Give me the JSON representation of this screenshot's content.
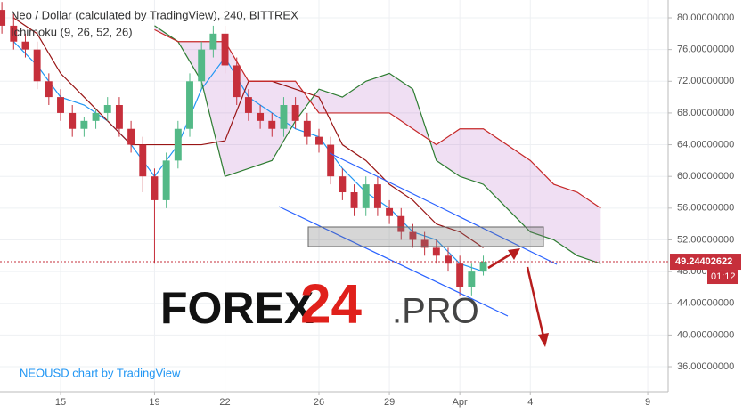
{
  "chart_data": {
    "type": "candlestick",
    "title": "Neo / Dollar (calculated by TradingView), 240, BITTREX",
    "subtitle": "Ichimoku (9, 26, 52, 26)",
    "x": [
      -2.5,
      -2,
      -1.5,
      -1,
      -0.5,
      0,
      0.5,
      1,
      1.5,
      2,
      2.5,
      3,
      3.5,
      4,
      4.5,
      5,
      5.5,
      6,
      6.5,
      7,
      7.5,
      8,
      8.5,
      9,
      9.5,
      10,
      10.5,
      11,
      11.5,
      12,
      12.5,
      13,
      13.5,
      14,
      14.5,
      15,
      15.5,
      16,
      16.5,
      17,
      17.5,
      18
    ],
    "open": [
      81,
      79,
      77,
      76,
      72,
      70,
      68,
      66,
      67,
      68,
      69,
      66,
      64,
      60,
      57,
      62,
      66,
      72,
      76,
      78,
      74,
      70,
      68,
      67,
      66,
      69,
      67,
      65,
      64,
      60,
      58,
      56,
      59,
      56,
      55,
      53,
      52,
      51,
      50,
      49,
      46,
      48
    ],
    "high": [
      82,
      80.5,
      78,
      77,
      73,
      71,
      69,
      67.5,
      68.5,
      70,
      70,
      67,
      65,
      61,
      63,
      67,
      73,
      77,
      79,
      79,
      75,
      71,
      69,
      68,
      70,
      70,
      68,
      66,
      65,
      61,
      59,
      60,
      60,
      57,
      56,
      54,
      53,
      52,
      51,
      50,
      49,
      50
    ],
    "low": [
      78,
      76,
      75,
      71,
      69,
      67,
      65,
      65,
      66,
      67,
      65,
      63,
      58,
      49,
      56,
      61,
      65,
      71,
      75,
      73,
      69,
      67,
      66,
      65,
      65,
      66,
      64,
      63,
      59,
      57,
      55,
      55,
      55,
      54,
      52,
      51,
      50,
      49,
      48,
      45,
      45,
      47.5
    ],
    "close": [
      79,
      77,
      76,
      72,
      70,
      68,
      66,
      67,
      68,
      69,
      66,
      64,
      60,
      57,
      62,
      66,
      72,
      76,
      78,
      74,
      70,
      68,
      67,
      66,
      69,
      67,
      65,
      64,
      60,
      58,
      56,
      59,
      56,
      55,
      53,
      52,
      51,
      50,
      49,
      46,
      48,
      49.24
    ],
    "up_color": "#53b987",
    "down_color": "#c62f3b",
    "series": [
      {
        "color": "#2196f3",
        "x": [
          -2,
          -1,
          0,
          1,
          2,
          3,
          4,
          5,
          6,
          7,
          8,
          9,
          10,
          11,
          12,
          13,
          14,
          15,
          16,
          17,
          18
        ],
        "values": [
          77,
          74,
          70,
          69,
          67,
          64,
          60,
          64,
          71,
          75,
          70,
          68,
          66,
          65,
          61,
          58,
          56,
          53,
          52,
          49,
          48
        ]
      },
      {
        "color": "#991515",
        "x": [
          -2,
          -1,
          0,
          1,
          2,
          3,
          4,
          5,
          6,
          7,
          8,
          9,
          10,
          11,
          12,
          13,
          14,
          15,
          16,
          17,
          18
        ],
        "values": [
          80,
          78,
          73,
          70,
          67,
          64,
          64,
          64,
          64,
          64.5,
          72,
          72,
          71,
          70,
          64,
          62,
          59,
          57,
          54,
          53,
          51
        ]
      },
      {
        "color": "#2e7d32",
        "x": [
          4,
          5,
          6,
          7,
          8,
          9,
          10,
          11,
          12,
          13,
          14,
          15,
          16,
          17,
          18,
          19,
          20,
          21,
          22,
          23
        ],
        "values": [
          79,
          77,
          72,
          60,
          61,
          62,
          67,
          71,
          70,
          72,
          73,
          71,
          62,
          60,
          59,
          56,
          53,
          52,
          50,
          49
        ]
      },
      {
        "color": "#c62828",
        "x": [
          4,
          5,
          6,
          7,
          8,
          9,
          10,
          11,
          12,
          13,
          14,
          15,
          16,
          17,
          18,
          19,
          20,
          21,
          22,
          23
        ],
        "values": [
          78.5,
          77,
          77,
          77,
          72,
          72,
          72,
          68,
          68,
          68,
          68,
          66,
          64,
          66,
          66,
          64,
          62,
          59,
          58,
          56
        ]
      }
    ],
    "cloud_color": "#9c27b0",
    "xlim": [
      -2.58,
      25.87
    ],
    "xticks": [
      {
        "value": 0,
        "label": "15"
      },
      {
        "value": 4,
        "label": "19"
      },
      {
        "value": 7,
        "label": "22"
      },
      {
        "value": 11,
        "label": "26"
      },
      {
        "value": 14,
        "label": "29"
      },
      {
        "value": 17,
        "label": "Apr"
      },
      {
        "value": 20,
        "label": "4"
      },
      {
        "value": 25,
        "label": "9"
      }
    ],
    "ylim": [
      32.86,
      82.245
    ],
    "yticks": [
      {
        "value": 36,
        "label": "36.00000000"
      },
      {
        "value": 40,
        "label": "40.00000000"
      },
      {
        "value": 44,
        "label": "44.00000000"
      },
      {
        "value": 48,
        "label": "48.00000000"
      },
      {
        "value": 52,
        "label": "52.00000000"
      },
      {
        "value": 56,
        "label": "56.00000000"
      },
      {
        "value": 60,
        "label": "60.00000000"
      },
      {
        "value": 64,
        "label": "64.00000000"
      },
      {
        "value": 68,
        "label": "68.00000000"
      },
      {
        "value": 72,
        "label": "72.00000000"
      },
      {
        "value": 76,
        "label": "76.00000000"
      },
      {
        "value": 80,
        "label": "80.00000000"
      }
    ],
    "grid": true,
    "last_price": 49.24402622,
    "countdown": "01:12",
    "watermark": "NEOUSD chart by TradingView",
    "logo": {
      "main": "FOREX",
      "number": "24",
      "suffix": ".PRO"
    }
  }
}
